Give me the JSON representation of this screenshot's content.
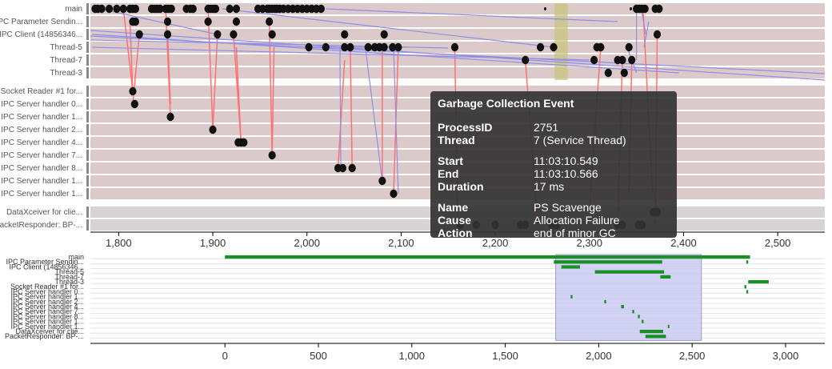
{
  "lanes_top": [
    {
      "label": "main",
      "group": "a"
    },
    {
      "label": "IPC Parameter Sendin...",
      "group": "a"
    },
    {
      "label": "IPC Client (14856346...",
      "group": "a"
    },
    {
      "label": "Thread-5",
      "group": "a"
    },
    {
      "label": "Thread-7",
      "group": "a"
    },
    {
      "label": "Thread-3",
      "group": "a"
    }
  ],
  "lanes_mid": [
    {
      "label": "Socket Reader #1 for..."
    },
    {
      "label": "IPC Server handler 0..."
    },
    {
      "label": "IPC Server handler 1..."
    },
    {
      "label": "IPC Server handler 2..."
    },
    {
      "label": "IPC Server handler 4..."
    },
    {
      "label": "IPC Server handler 7..."
    },
    {
      "label": "IPC Server handler 8..."
    },
    {
      "label": "IPC Server handler 1..."
    },
    {
      "label": "IPC Server handler 1..."
    }
  ],
  "lanes_bottom": [
    {
      "label": "DataXceiver for clie..."
    },
    {
      "label": "PacketResponder: BP-..."
    }
  ],
  "mini_labels": [
    "main",
    "IPC Parameter Sendin...",
    "IPC Client (14856346...",
    "Thread-5",
    "Thread-7",
    "Thread-3",
    "Socket Reader #1 for...",
    "IPC Server handler 0...",
    "IPC Server handler 1...",
    "IPC Server handler 2...",
    "IPC Server handler 4...",
    "IPC Server handler 7...",
    "IPC Server handler 8...",
    "IPC Server handler 1...",
    "IPC Server handler 1...",
    "DataXceiver for clie...",
    "PacketResponder: BP-..."
  ],
  "top_axis": {
    "ticks": [
      "1,800",
      "1,900",
      "2,000",
      "2,100",
      "2,200",
      "2,300",
      "2,400",
      "2,500"
    ],
    "values": [
      1800,
      1900,
      2000,
      2100,
      2200,
      2300,
      2400,
      2500
    ],
    "domain": [
      1770,
      2550
    ]
  },
  "bottom_axis": {
    "ticks": [
      "0",
      "500",
      "1,000",
      "1,500",
      "2,000",
      "2,500",
      "3,000"
    ],
    "values": [
      0,
      500,
      1000,
      1500,
      2000,
      2500,
      3000
    ],
    "domain": [
      -720,
      3210
    ]
  },
  "brush": {
    "from": 1770,
    "to": 2550
  },
  "gc_highlight": {
    "from": 2263,
    "to": 2277
  },
  "colors": {
    "lane_pink": "#dcc9c9",
    "lane_gray": "#d8d4d6",
    "message_red": "#ff7070",
    "message_blue": "#8f8fe6",
    "event_black": "#111111",
    "gc_olive": "#c8c47e",
    "mini_green": "#1a8f26",
    "brush_fill": "#c8c8f2"
  },
  "tooltip": {
    "title": "Garbage Collection Event",
    "process_id_key": "ProcessID",
    "process_id": "2751",
    "thread_key": "Thread",
    "thread": "7 (Service Thread)",
    "start_key": "Start",
    "start": "11:03:10.549",
    "end_key": "End",
    "end": "11:03:10.566",
    "duration_key": "Duration",
    "duration": "17 ms",
    "name_key": "Name",
    "name": "PS Scavenge",
    "cause_key": "Cause",
    "cause": "Allocation Failure",
    "action_key": "Action",
    "action": "end of minor GC"
  }
}
